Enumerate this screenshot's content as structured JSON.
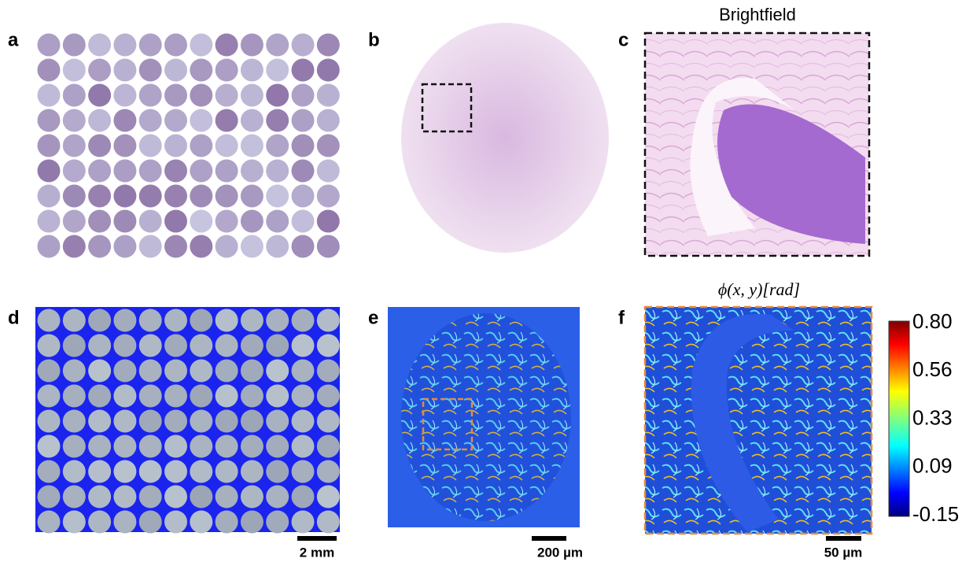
{
  "panels": {
    "a": {
      "label": "a"
    },
    "b": {
      "label": "b"
    },
    "c": {
      "label": "c",
      "title": "Brightfield"
    },
    "d": {
      "label": "d",
      "scale_bar": "2 mm"
    },
    "e": {
      "label": "e",
      "scale_bar": "200 µm"
    },
    "f": {
      "label": "f",
      "title": "ϕ(x, y)[rad]",
      "scale_bar": "50 µm",
      "colorbar": {
        "ticks": [
          "0.80",
          "0.56",
          "0.33",
          "0.09",
          "-0.15"
        ]
      }
    }
  }
}
